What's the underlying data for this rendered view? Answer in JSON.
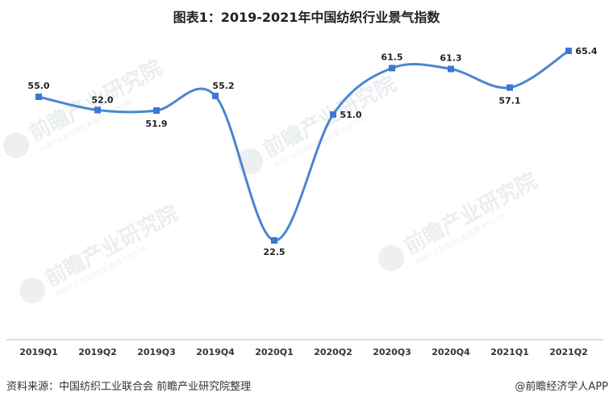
{
  "title": "图表1：2019-2021年中国纺织行业景气指数",
  "source": "资料来源：中国纺织工业联合会 前瞻产业研究院整理",
  "credit": "@前瞻经济学人APP",
  "watermark": {
    "main": "前瞻产业研究院",
    "sub": "中国产业咨询领导者(股票:839599)"
  },
  "colors": {
    "line": "#4a86d0",
    "marker": "#3a78d2",
    "axis": "#d9d9d9"
  },
  "chart_data": {
    "type": "line",
    "title": "图表1：2019-2021年中国纺织行业景气指数",
    "xlabel": "",
    "ylabel": "",
    "categories": [
      "2019Q1",
      "2019Q2",
      "2019Q3",
      "2019Q4",
      "2020Q1",
      "2020Q2",
      "2020Q3",
      "2020Q4",
      "2021Q1",
      "2021Q2"
    ],
    "series": [
      {
        "name": "中国纺织行业景气指数",
        "values": [
          55.0,
          52.0,
          51.9,
          55.2,
          22.5,
          51.0,
          61.5,
          61.3,
          57.1,
          65.4
        ]
      }
    ],
    "value_labels": [
      "55.0",
      "52.0",
      "51.9",
      "55.2",
      "22.5",
      "51.0",
      "61.5",
      "61.3",
      "57.1",
      "65.4"
    ],
    "grid": false,
    "legend": "none",
    "smooth": true
  }
}
